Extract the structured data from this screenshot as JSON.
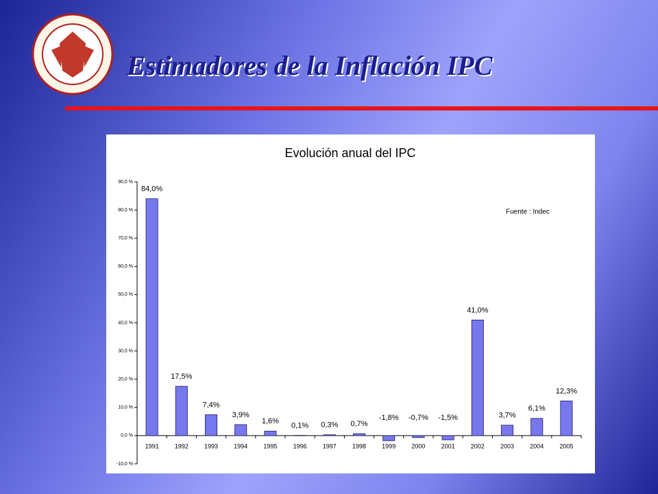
{
  "header": {
    "title": "Estimadores de la Inflación IPC"
  },
  "chart_data": {
    "type": "bar",
    "title": "Evolución anual del IPC",
    "annotation": "Fuente : Indec",
    "categories": [
      "1991",
      "1992",
      "1993",
      "1994",
      "1995",
      "1996",
      "1997",
      "1998",
      "1999",
      "2000",
      "2001",
      "2002",
      "2003",
      "2004",
      "2005"
    ],
    "values": [
      84.0,
      17.5,
      7.4,
      3.9,
      1.6,
      0.1,
      0.3,
      0.7,
      -1.8,
      -0.7,
      -1.5,
      41.0,
      3.7,
      6.1,
      12.3
    ],
    "value_labels": [
      "84,0%",
      "17,5%",
      "7,4%",
      "3,9%",
      "1,6%",
      "0,1%",
      "0,3%",
      "0,7%",
      "-1,8%",
      "-0,7%",
      "-1,5%",
      "41,0%",
      "3,7%",
      "6,1%",
      "12,3%"
    ],
    "color": "#7777ee",
    "ylim": [
      -10,
      90
    ],
    "yticks": [
      {
        "value": -10,
        "label": "-10,0 %"
      },
      {
        "value": 0,
        "label": "0,0 %"
      },
      {
        "value": 10,
        "label": "10,0 %"
      },
      {
        "value": 20,
        "label": "20,0 %"
      },
      {
        "value": 30,
        "label": "30,0 %"
      },
      {
        "value": 40,
        "label": "40,0 %"
      },
      {
        "value": 50,
        "label": "50,0 %"
      },
      {
        "value": 60,
        "label": "60,0 %"
      },
      {
        "value": 70,
        "label": "70,0 %"
      },
      {
        "value": 80,
        "label": "80,0 %"
      },
      {
        "value": 90,
        "label": "90,0 %"
      }
    ]
  }
}
